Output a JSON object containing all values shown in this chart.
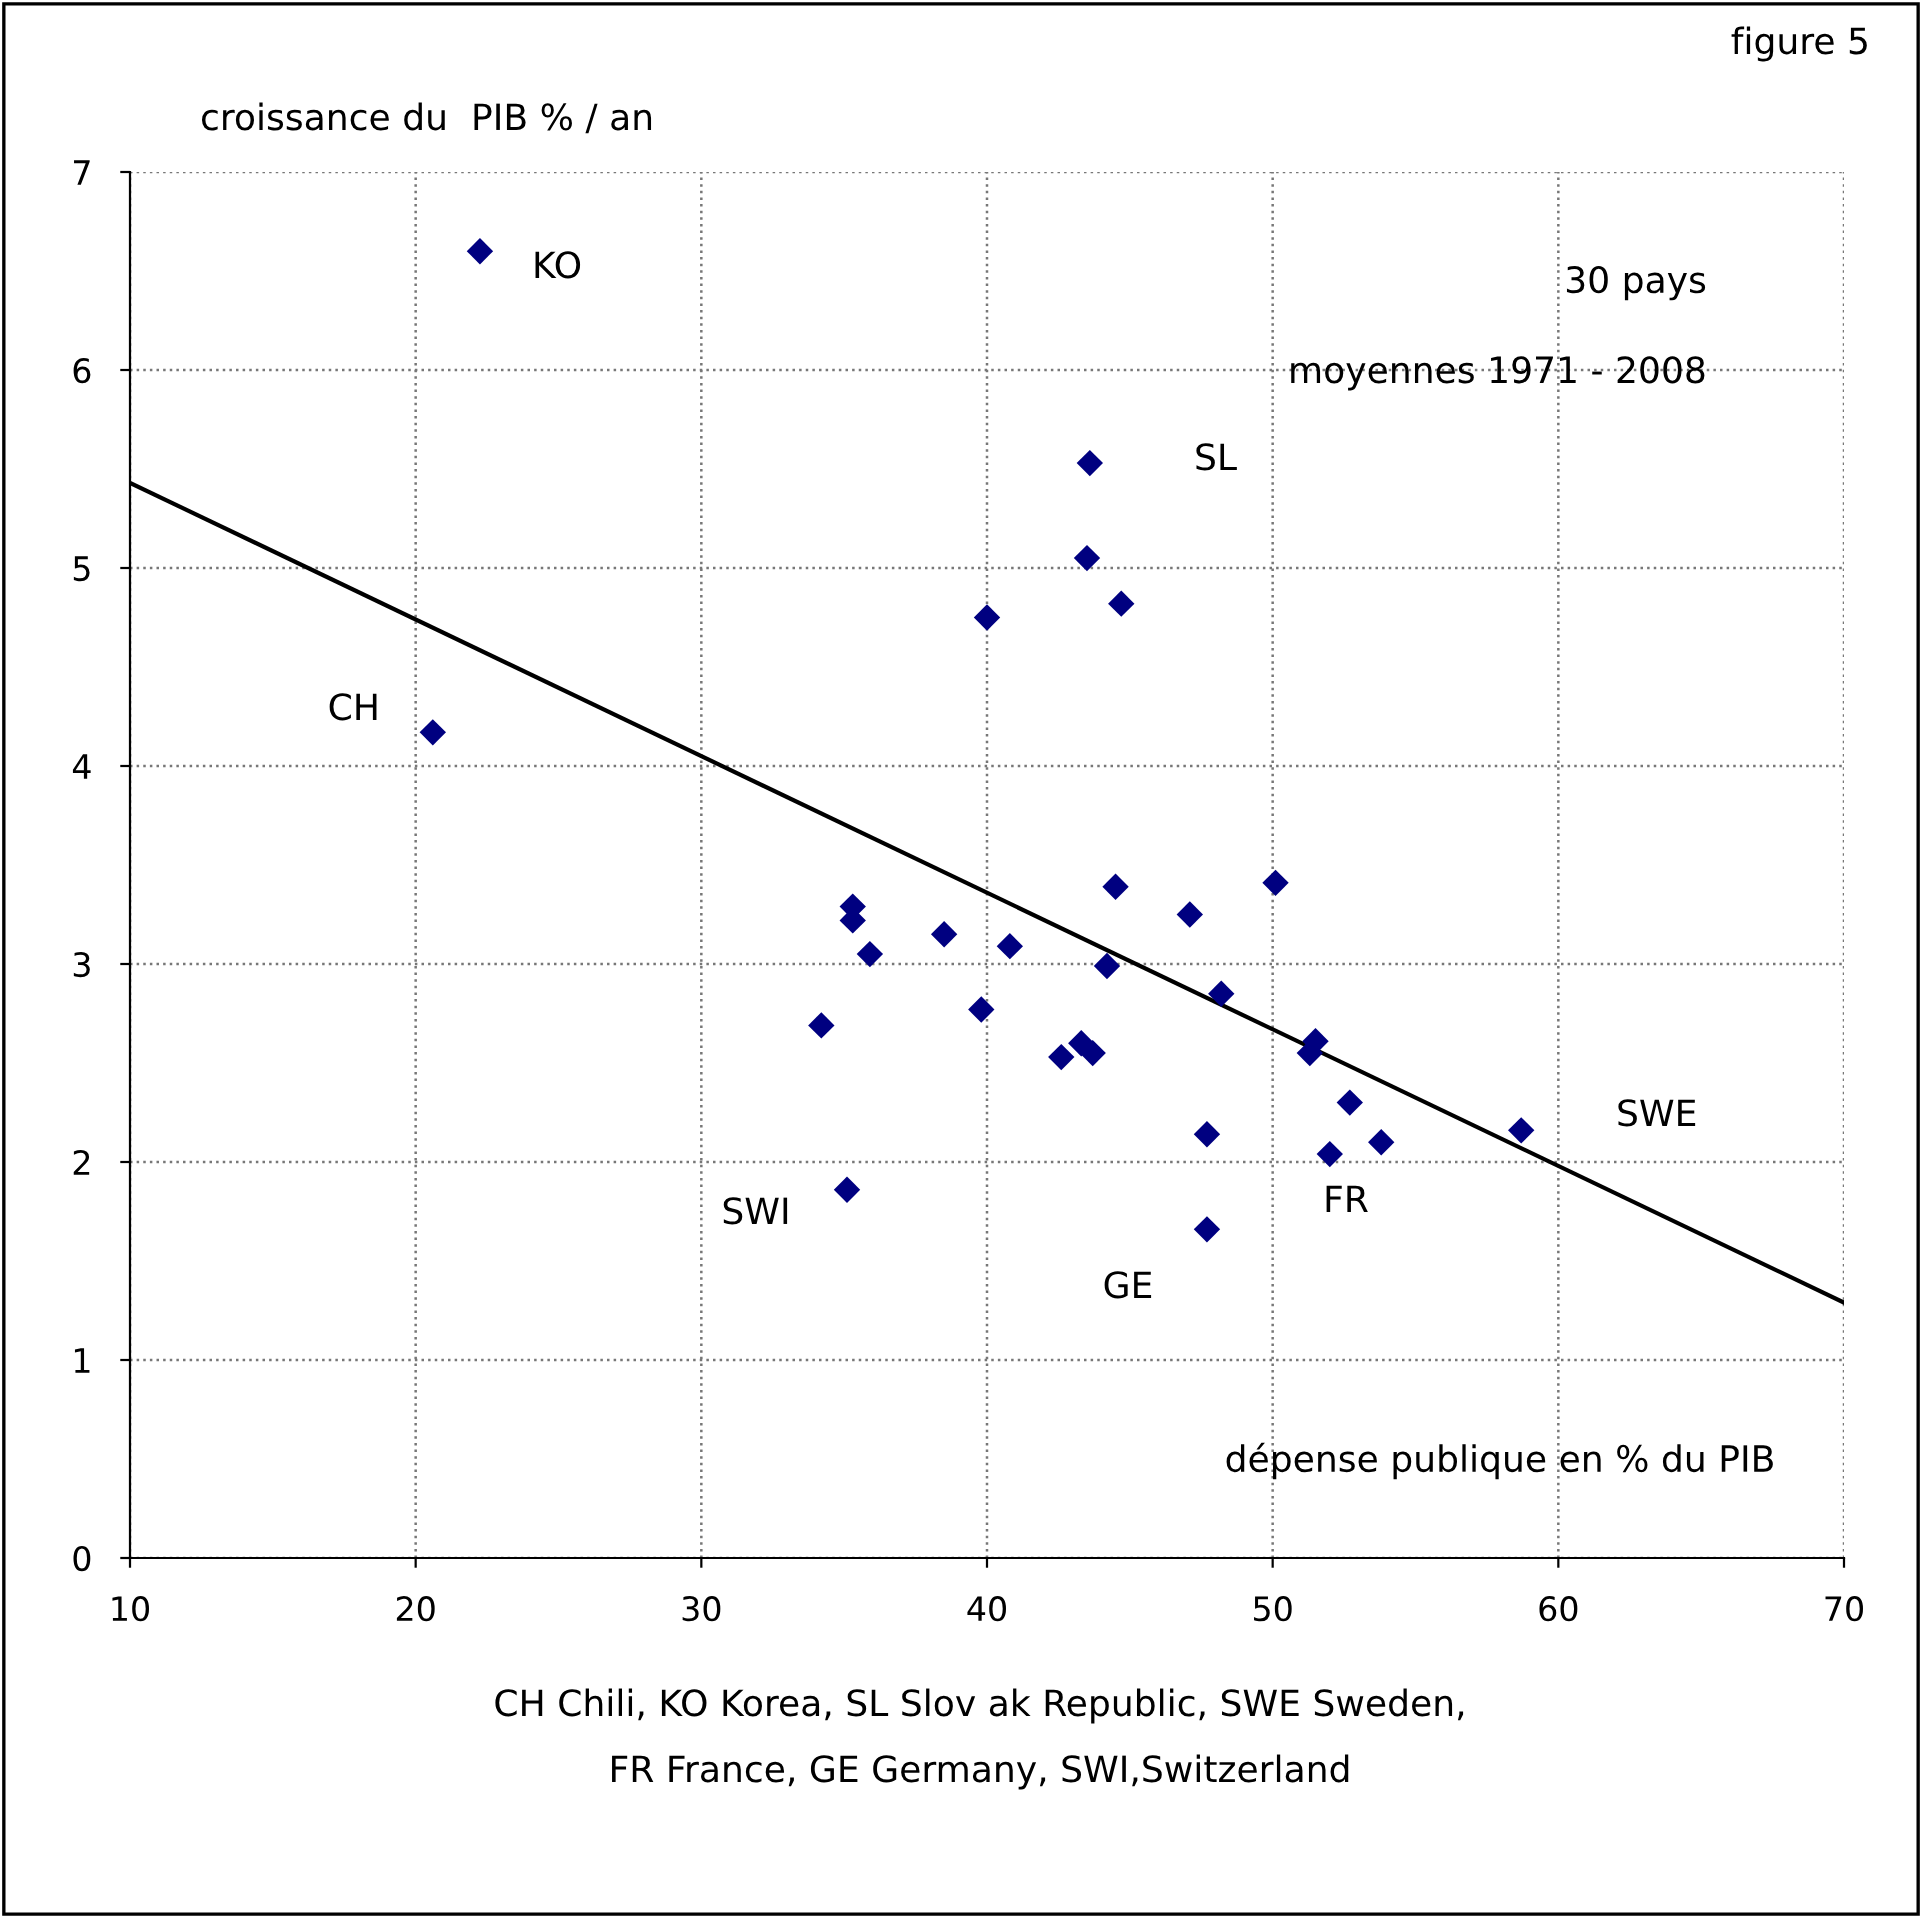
{
  "chart_data": {
    "type": "scatter",
    "ylabel": "croissance du  PIB % / an",
    "xlabel": "dépense publique en % du PIB",
    "xlim": [
      10,
      70
    ],
    "ylim": [
      0,
      7
    ],
    "xticks": [
      10,
      20,
      30,
      40,
      50,
      60,
      70
    ],
    "yticks": [
      0,
      1,
      2,
      3,
      4,
      5,
      6,
      7
    ],
    "grid": true,
    "series": [
      {
        "type": "scatter",
        "marker": "diamond",
        "color": "#000080",
        "x": [
          22.25,
          20.6,
          43.6,
          43.5,
          44.7,
          40.0,
          44.5,
          50.1,
          47.1,
          35.3,
          35.3,
          38.5,
          40.8,
          35.9,
          44.2,
          48.2,
          34.2,
          39.8,
          42.6,
          43.3,
          43.7,
          51.5,
          51.3,
          52.7,
          53.8,
          52.0,
          47.7,
          58.7,
          35.1,
          47.7
        ],
        "values": [
          6.6,
          4.17,
          5.53,
          5.05,
          4.82,
          4.75,
          3.39,
          3.41,
          3.25,
          3.29,
          3.22,
          3.15,
          3.09,
          3.05,
          2.99,
          2.85,
          2.69,
          2.77,
          2.53,
          2.6,
          2.55,
          2.61,
          2.55,
          2.3,
          2.1,
          2.04,
          2.14,
          2.16,
          1.86,
          1.66
        ]
      },
      {
        "type": "line",
        "color": "#000000",
        "x": [
          10,
          70
        ],
        "values": [
          5.43,
          1.29
        ]
      }
    ],
    "annotations": [
      "KO",
      "CH",
      "SL",
      "SWE",
      "FR",
      "GE",
      "SWI",
      "30 pays",
      "moyennes 1971 - 2008",
      "figure 5",
      "CH Chili, KO Korea, SL Slov ak Republic, SWE Sweden,",
      "FR France, GE Germany, SWI,Switzerland"
    ]
  }
}
